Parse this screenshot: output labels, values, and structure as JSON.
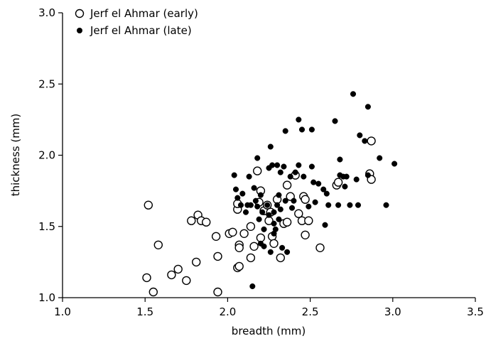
{
  "chart_data": {
    "type": "scatter",
    "xlabel": "breadth (mm)",
    "ylabel": "thickness (mm)",
    "xlim": [
      1.0,
      3.5
    ],
    "ylim": [
      1.0,
      3.0
    ],
    "x_ticks": [
      "1.0",
      "1.5",
      "2.0",
      "2.5",
      "3.0",
      "3.5"
    ],
    "y_ticks": [
      "1.0",
      "1.5",
      "2.0",
      "2.5",
      "3.0"
    ],
    "legend_position": "top-left",
    "series": [
      {
        "name": "Jerf el Ahmar (early)",
        "marker": "open-circle",
        "color": "#000000",
        "points": [
          [
            1.52,
            1.65
          ],
          [
            1.51,
            1.14
          ],
          [
            1.55,
            1.04
          ],
          [
            1.58,
            1.37
          ],
          [
            1.66,
            1.16
          ],
          [
            1.7,
            1.2
          ],
          [
            1.75,
            1.12
          ],
          [
            1.78,
            1.54
          ],
          [
            1.82,
            1.58
          ],
          [
            1.84,
            1.54
          ],
          [
            1.87,
            1.53
          ],
          [
            1.81,
            1.25
          ],
          [
            1.93,
            1.43
          ],
          [
            1.94,
            1.29
          ],
          [
            1.94,
            1.04
          ],
          [
            2.01,
            1.45
          ],
          [
            2.03,
            1.46
          ],
          [
            2.06,
            1.62
          ],
          [
            2.06,
            1.66
          ],
          [
            2.07,
            1.37
          ],
          [
            2.07,
            1.35
          ],
          [
            2.06,
            1.21
          ],
          [
            2.07,
            1.22
          ],
          [
            2.1,
            1.45
          ],
          [
            2.14,
            1.5
          ],
          [
            2.14,
            1.28
          ],
          [
            2.16,
            1.36
          ],
          [
            2.18,
            1.89
          ],
          [
            2.19,
            1.67
          ],
          [
            2.2,
            1.75
          ],
          [
            2.2,
            1.42
          ],
          [
            2.22,
            1.61
          ],
          [
            2.24,
            1.65
          ],
          [
            2.25,
            1.54
          ],
          [
            2.26,
            1.6
          ],
          [
            2.27,
            1.43
          ],
          [
            2.28,
            1.38
          ],
          [
            2.3,
            1.69
          ],
          [
            2.32,
            1.28
          ],
          [
            2.34,
            1.52
          ],
          [
            2.36,
            1.53
          ],
          [
            2.36,
            1.79
          ],
          [
            2.38,
            1.71
          ],
          [
            2.41,
            1.86
          ],
          [
            2.43,
            1.59
          ],
          [
            2.45,
            1.54
          ],
          [
            2.46,
            1.71
          ],
          [
            2.47,
            1.69
          ],
          [
            2.47,
            1.44
          ],
          [
            2.49,
            1.54
          ],
          [
            2.56,
            1.35
          ],
          [
            2.66,
            1.79
          ],
          [
            2.67,
            1.81
          ],
          [
            2.86,
            1.87
          ],
          [
            2.87,
            2.1
          ],
          [
            2.87,
            1.83
          ]
        ]
      },
      {
        "name": "Jerf el Ahmar (late)",
        "marker": "filled-circle",
        "color": "#000000",
        "points": [
          [
            2.04,
            1.86
          ],
          [
            2.05,
            1.76
          ],
          [
            2.06,
            1.7
          ],
          [
            2.08,
            1.65
          ],
          [
            2.09,
            1.73
          ],
          [
            2.11,
            1.6
          ],
          [
            2.12,
            1.65
          ],
          [
            2.13,
            1.85
          ],
          [
            2.14,
            1.65
          ],
          [
            2.15,
            1.08
          ],
          [
            2.16,
            1.77
          ],
          [
            2.17,
            1.68
          ],
          [
            2.18,
            1.98
          ],
          [
            2.18,
            1.64
          ],
          [
            2.19,
            1.55
          ],
          [
            2.2,
            1.72
          ],
          [
            2.2,
            1.38
          ],
          [
            2.21,
            1.6
          ],
          [
            2.22,
            1.48
          ],
          [
            2.22,
            1.36
          ],
          [
            2.24,
            1.65
          ],
          [
            2.25,
            1.91
          ],
          [
            2.25,
            1.58
          ],
          [
            2.26,
            2.06
          ],
          [
            2.26,
            1.32
          ],
          [
            2.27,
            1.93
          ],
          [
            2.28,
            1.6
          ],
          [
            2.28,
            1.45
          ],
          [
            2.28,
            1.52
          ],
          [
            2.29,
            1.48
          ],
          [
            2.3,
            1.65
          ],
          [
            2.3,
            1.93
          ],
          [
            2.31,
            1.72
          ],
          [
            2.31,
            1.55
          ],
          [
            2.32,
            1.88
          ],
          [
            2.32,
            1.62
          ],
          [
            2.33,
            1.35
          ],
          [
            2.34,
            1.92
          ],
          [
            2.35,
            1.68
          ],
          [
            2.35,
            2.17
          ],
          [
            2.36,
            1.32
          ],
          [
            2.38,
            1.85
          ],
          [
            2.39,
            1.63
          ],
          [
            2.4,
            1.68
          ],
          [
            2.41,
            1.88
          ],
          [
            2.43,
            2.25
          ],
          [
            2.43,
            1.93
          ],
          [
            2.45,
            2.18
          ],
          [
            2.46,
            1.85
          ],
          [
            2.49,
            1.64
          ],
          [
            2.51,
            1.92
          ],
          [
            2.51,
            2.18
          ],
          [
            2.52,
            1.81
          ],
          [
            2.53,
            1.67
          ],
          [
            2.55,
            1.8
          ],
          [
            2.58,
            1.76
          ],
          [
            2.59,
            1.51
          ],
          [
            2.6,
            1.73
          ],
          [
            2.61,
            1.65
          ],
          [
            2.65,
            2.24
          ],
          [
            2.67,
            1.65
          ],
          [
            2.68,
            1.86
          ],
          [
            2.68,
            1.97
          ],
          [
            2.7,
            1.85
          ],
          [
            2.71,
            1.78
          ],
          [
            2.72,
            1.85
          ],
          [
            2.74,
            1.65
          ],
          [
            2.76,
            2.43
          ],
          [
            2.78,
            1.83
          ],
          [
            2.79,
            1.65
          ],
          [
            2.8,
            2.14
          ],
          [
            2.83,
            2.1
          ],
          [
            2.85,
            2.34
          ],
          [
            2.85,
            1.86
          ],
          [
            2.92,
            1.98
          ],
          [
            2.96,
            1.65
          ],
          [
            3.01,
            1.94
          ]
        ]
      }
    ]
  }
}
